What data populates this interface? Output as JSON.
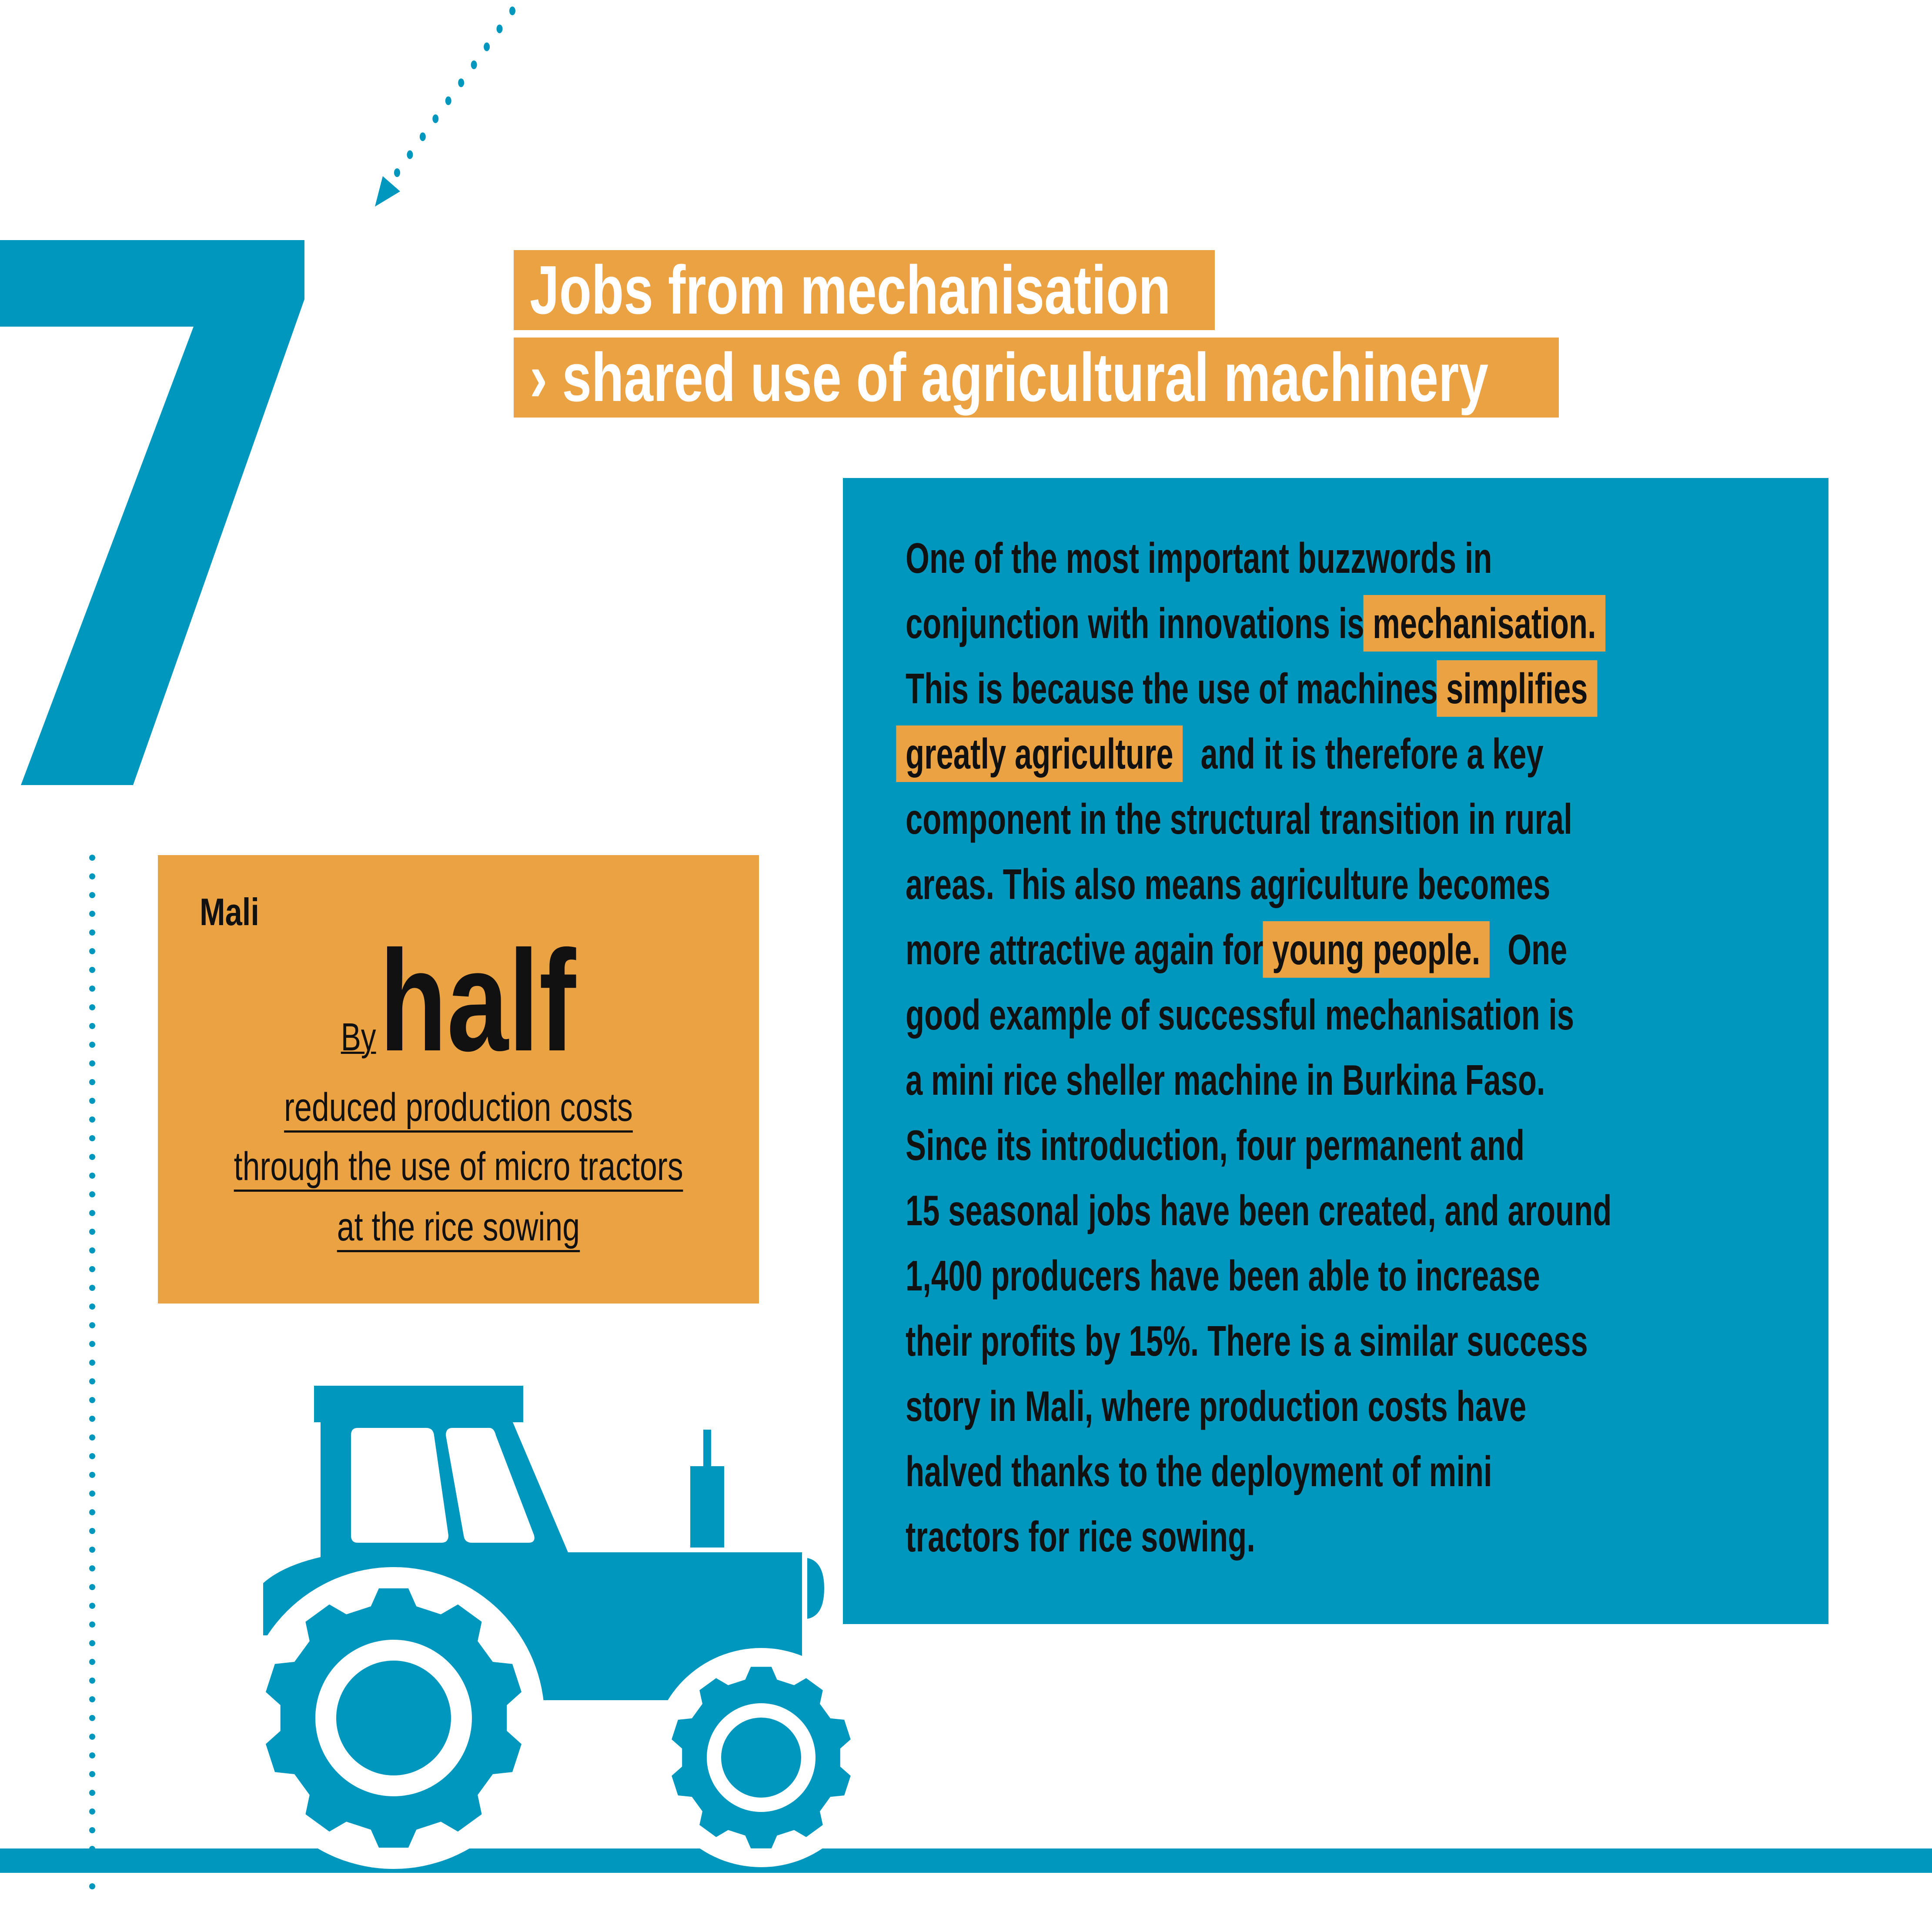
{
  "colors": {
    "accent_blue": "#0097BF",
    "accent_orange": "#EBA243",
    "text": "#111111"
  },
  "section_number": "7",
  "title": {
    "line1": "Jobs from mechanisation",
    "line2": "› shared use of agricultural machinery"
  },
  "stat": {
    "country": "Mali",
    "prefix": "By",
    "value": "half",
    "lines": [
      "reduced production costs",
      "through the use of micro tractors",
      "at the rice sowing"
    ]
  },
  "body": {
    "lines": [
      [
        {
          "text": "One of the most important buzzwords in",
          "highlight": false
        }
      ],
      [
        {
          "text": "conjunction with innovations is ",
          "highlight": false
        },
        {
          "text": "mechanisation.",
          "highlight": true
        }
      ],
      [
        {
          "text": "This is because the use of machines ",
          "highlight": false
        },
        {
          "text": "simplifies",
          "highlight": true
        }
      ],
      [
        {
          "text": "greatly agriculture",
          "highlight": true
        },
        {
          "text": " and it is therefore a key",
          "highlight": false
        }
      ],
      [
        {
          "text": "component in the structural transition in rural",
          "highlight": false
        }
      ],
      [
        {
          "text": "areas. This also means agriculture becomes",
          "highlight": false
        }
      ],
      [
        {
          "text": "more attractive again for ",
          "highlight": false
        },
        {
          "text": "young people.",
          "highlight": true
        },
        {
          "text": " One",
          "highlight": false
        }
      ],
      [
        {
          "text": "good example of successful mechanisation is",
          "highlight": false
        }
      ],
      [
        {
          "text": "a mini rice sheller machine in Burkina Faso.",
          "highlight": false
        }
      ],
      [
        {
          "text": "Since its introduction, four permanent and",
          "highlight": false
        }
      ],
      [
        {
          "text": "15 seasonal jobs have been created, and around",
          "highlight": false
        }
      ],
      [
        {
          "text": "1,400 producers have been able to increase",
          "highlight": false
        }
      ],
      [
        {
          "text": "their profits by 15%. There is a similar success",
          "highlight": false
        }
      ],
      [
        {
          "text": "story in Mali, where production costs have",
          "highlight": false
        }
      ],
      [
        {
          "text": "halved thanks to the deployment of mini",
          "highlight": false
        }
      ],
      [
        {
          "text": "tractors for rice sowing.",
          "highlight": false
        }
      ]
    ]
  },
  "icons": [
    "dotted-arrow-icon",
    "tractor-icon"
  ]
}
